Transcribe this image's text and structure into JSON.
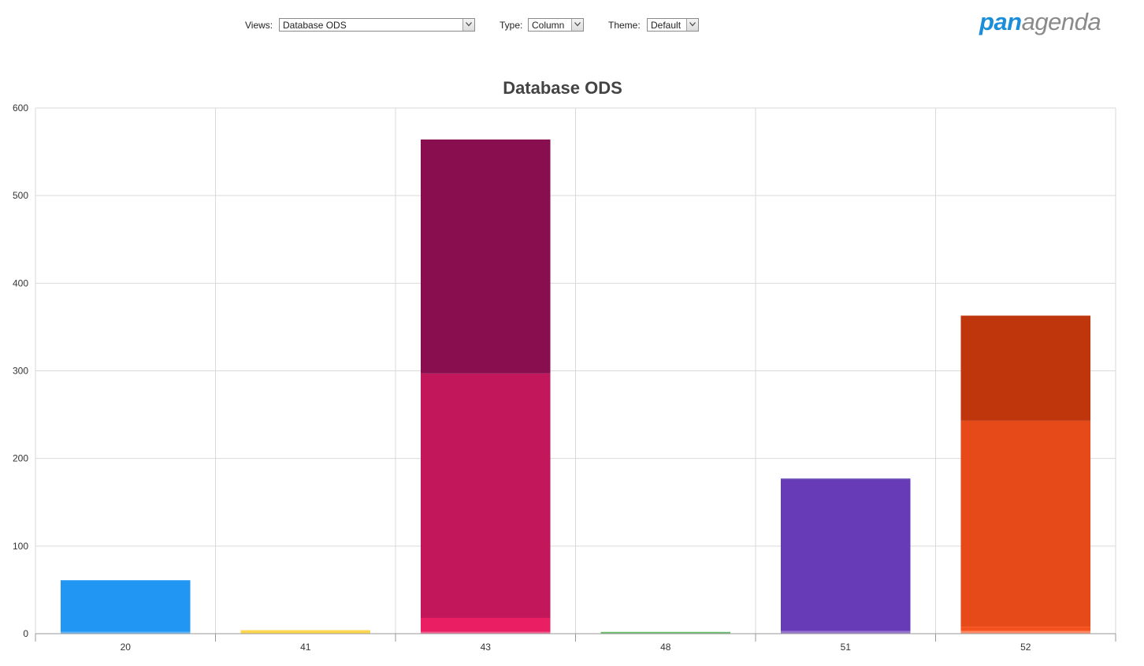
{
  "toolbar": {
    "views_label": "Views:",
    "views_value": "Database ODS",
    "type_label": "Type:",
    "type_value": "Column",
    "theme_label": "Theme:",
    "theme_value": "Default"
  },
  "logo": {
    "part1": "pan",
    "part2": "agenda",
    "color1": "#1a8ed8",
    "color2": "#8a8a8a"
  },
  "chart_data": {
    "type": "bar",
    "stacked": true,
    "title": "Database ODS",
    "xlabel": "",
    "ylabel": "",
    "ylim": [
      0,
      600
    ],
    "yticks": [
      0,
      100,
      200,
      300,
      400,
      500,
      600
    ],
    "grid": true,
    "categories": [
      "20",
      "41",
      "43",
      "48",
      "51",
      "52"
    ],
    "stacks": [
      {
        "category": "20",
        "segments": [
          {
            "value": 2,
            "color": "#64b5f6"
          },
          {
            "value": 59,
            "color": "#2196f3"
          }
        ]
      },
      {
        "category": "41",
        "segments": [
          {
            "value": 4,
            "color": "#fdd54f"
          }
        ]
      },
      {
        "category": "43",
        "segments": [
          {
            "value": 2,
            "color": "#f06292"
          },
          {
            "value": 16,
            "color": "#e91e63"
          },
          {
            "value": 279,
            "color": "#c2185b"
          },
          {
            "value": 267,
            "color": "#880e4f"
          }
        ]
      },
      {
        "category": "48",
        "segments": [
          {
            "value": 2,
            "color": "#66bb6a"
          }
        ]
      },
      {
        "category": "51",
        "segments": [
          {
            "value": 3,
            "color": "#9575cd"
          },
          {
            "value": 173,
            "color": "#673ab7"
          },
          {
            "value": 1,
            "color": "#512da8"
          }
        ]
      },
      {
        "category": "52",
        "segments": [
          {
            "value": 3,
            "color": "#ff8a65"
          },
          {
            "value": 5,
            "color": "#f4511e"
          },
          {
            "value": 235,
            "color": "#e64a19"
          },
          {
            "value": 120,
            "color": "#bf360c"
          }
        ]
      }
    ]
  }
}
